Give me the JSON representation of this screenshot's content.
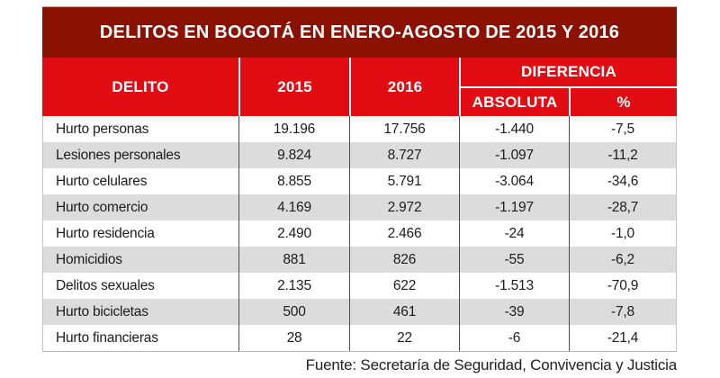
{
  "title": "DELITOS EN BOGOTÁ EN ENERO-AGOSTO DE 2015 Y 2016",
  "table": {
    "headers": {
      "delito": "DELITO",
      "y2015": "2015",
      "y2016": "2016",
      "diferencia": "DIFERENCIA",
      "absoluta": "ABSOLUTA",
      "pct": "%"
    },
    "rows": [
      {
        "delito": "Hurto personas",
        "y2015": "19.196",
        "y2016": "17.756",
        "absoluta": "-1.440",
        "pct": "-7,5"
      },
      {
        "delito": "Lesiones personales",
        "y2015": "9.824",
        "y2016": "8.727",
        "absoluta": "-1.097",
        "pct": "-11,2"
      },
      {
        "delito": "Hurto celulares",
        "y2015": "8.855",
        "y2016": "5.791",
        "absoluta": "-3.064",
        "pct": "-34,6"
      },
      {
        "delito": "Hurto comercio",
        "y2015": "4.169",
        "y2016": "2.972",
        "absoluta": "-1.197",
        "pct": "-28,7"
      },
      {
        "delito": "Hurto residencia",
        "y2015": "2.490",
        "y2016": "2.466",
        "absoluta": "-24",
        "pct": "-1,0"
      },
      {
        "delito": "Homicidios",
        "y2015": "881",
        "y2016": "826",
        "absoluta": "-55",
        "pct": "-6,2"
      },
      {
        "delito": "Delitos sexuales",
        "y2015": "2.135",
        "y2016": "622",
        "absoluta": "-1.513",
        "pct": "-70,9"
      },
      {
        "delito": "Hurto bicicletas",
        "y2015": "500",
        "y2016": "461",
        "absoluta": "-39",
        "pct": "-7,8"
      },
      {
        "delito": "Hurto financieras",
        "y2015": "28",
        "y2016": "22",
        "absoluta": "-6",
        "pct": "-21,4"
      }
    ]
  },
  "footer": "Fuente: Secretaría de Seguridad, Convivencia y Justicia",
  "colors": {
    "title_bg": "#8b1102",
    "header_bg": "#e20d13",
    "row_alt": "#dcdcdc"
  },
  "chart_data": {
    "type": "table",
    "title": "DELITOS EN BOGOTÁ EN ENERO-AGOSTO DE 2015 Y 2016",
    "columns": [
      "DELITO",
      "2015",
      "2016",
      "DIFERENCIA ABSOLUTA",
      "DIFERENCIA %"
    ],
    "rows": [
      [
        "Hurto personas",
        19196,
        17756,
        -1440,
        -7.5
      ],
      [
        "Lesiones personales",
        9824,
        8727,
        -1097,
        -11.2
      ],
      [
        "Hurto celulares",
        8855,
        5791,
        -3064,
        -34.6
      ],
      [
        "Hurto comercio",
        4169,
        2972,
        -1197,
        -28.7
      ],
      [
        "Hurto residencia",
        2490,
        2466,
        -24,
        -1.0
      ],
      [
        "Homicidios",
        881,
        826,
        -55,
        -6.2
      ],
      [
        "Delitos sexuales",
        2135,
        622,
        -1513,
        -70.9
      ],
      [
        "Hurto bicicletas",
        500,
        461,
        -39,
        -7.8
      ],
      [
        "Hurto financieras",
        28,
        22,
        -6,
        -21.4
      ]
    ],
    "source": "Fuente: Secretaría de Seguridad, Convivencia y Justicia"
  }
}
